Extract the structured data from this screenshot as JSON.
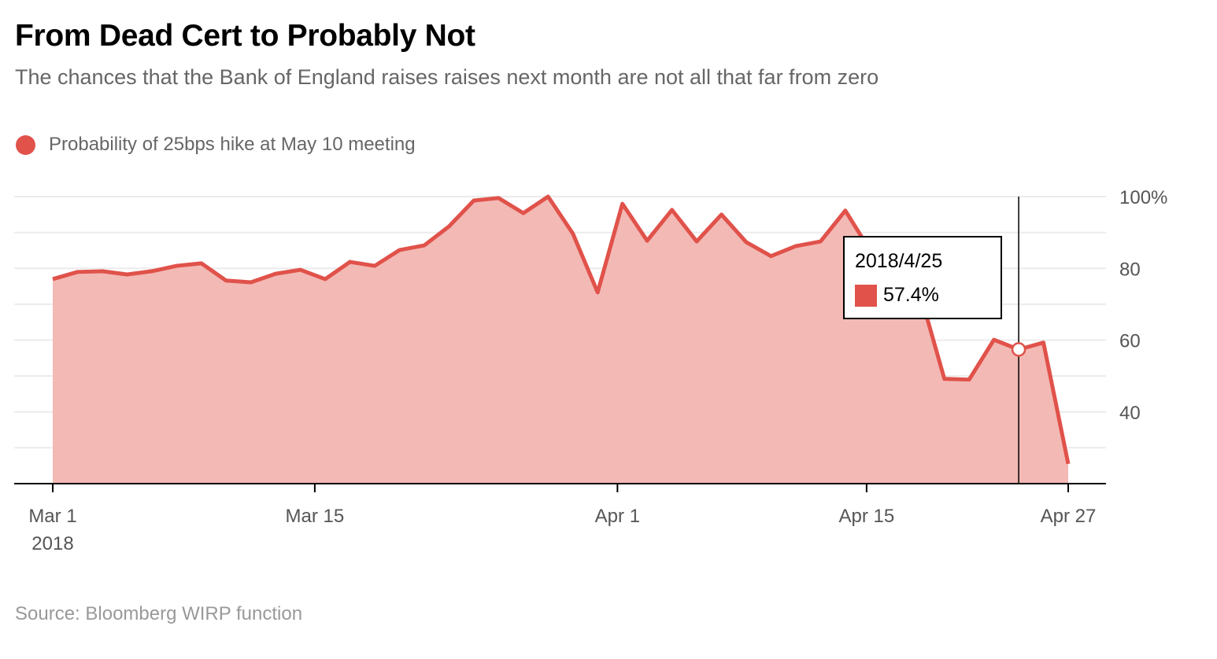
{
  "title": "From Dead Cert to Probably Not",
  "subtitle": "The chances that the Bank of England raises raises next month are not all that far from zero",
  "source": "Source: Bloomberg WIRP function",
  "colors": {
    "line": "#e0524a",
    "fill": "#f3b9b5",
    "grid": "#ebebeb",
    "axis": "#000000"
  },
  "chart_data": {
    "type": "area",
    "series": [
      {
        "name": "Probability of 25bps hike at May 10 meeting",
        "unit": "%",
        "x": [
          "2018-03-01",
          "2018-03-02",
          "2018-03-05",
          "2018-03-06",
          "2018-03-07",
          "2018-03-08",
          "2018-03-09",
          "2018-03-12",
          "2018-03-13",
          "2018-03-14",
          "2018-03-15",
          "2018-03-16",
          "2018-03-19",
          "2018-03-20",
          "2018-03-21",
          "2018-03-22",
          "2018-03-23",
          "2018-03-26",
          "2018-03-27",
          "2018-03-28",
          "2018-03-29",
          "2018-03-30",
          "2018-04-02",
          "2018-04-03",
          "2018-04-04",
          "2018-04-05",
          "2018-04-06",
          "2018-04-09",
          "2018-04-10",
          "2018-04-11",
          "2018-04-12",
          "2018-04-13",
          "2018-04-16",
          "2018-04-17",
          "2018-04-18",
          "2018-04-19",
          "2018-04-20",
          "2018-04-23",
          "2018-04-24",
          "2018-04-25",
          "2018-04-26",
          "2018-04-27"
        ],
        "values": [
          77.0,
          79.0,
          79.2,
          78.3,
          79.2,
          80.7,
          81.4,
          76.6,
          76.1,
          78.5,
          79.6,
          77.0,
          81.8,
          80.7,
          85.1,
          86.4,
          91.7,
          98.9,
          99.6,
          95.4,
          100.0,
          89.7,
          73.3,
          98.0,
          87.7,
          96.3,
          87.5,
          95.0,
          87.3,
          83.4,
          86.2,
          87.5,
          96.1,
          85.0,
          79.0,
          73.5,
          49.2,
          49.0,
          60.1,
          57.4,
          59.3,
          25.5
        ]
      }
    ],
    "x_ticks": [
      {
        "label": "Mar 1",
        "sublabel": "2018"
      },
      {
        "label": "Mar 15"
      },
      {
        "label": "Apr 1"
      },
      {
        "label": "Apr 15"
      },
      {
        "label": "Apr 27"
      }
    ],
    "y_ticks": [
      {
        "value": 100,
        "label": "100%"
      },
      {
        "value": 80,
        "label": "80"
      },
      {
        "value": 60,
        "label": "60"
      },
      {
        "value": 40,
        "label": "40"
      }
    ],
    "ylim": [
      20,
      100
    ],
    "grid_step": 10,
    "grid": true,
    "y_axis_side": "right",
    "legend_position": "top-left",
    "tooltip": {
      "date": "2018/4/25",
      "value": "57.4%",
      "index": 39
    }
  }
}
